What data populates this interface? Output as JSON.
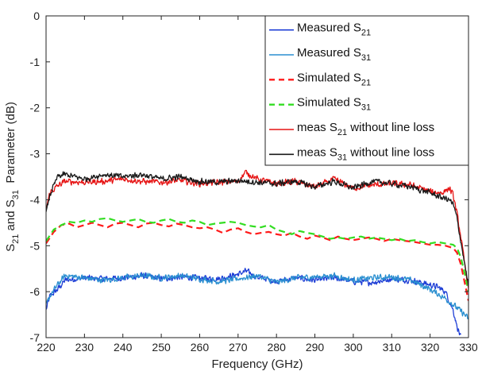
{
  "chart_data": {
    "type": "line",
    "xlabel": "Frequency (GHz)",
    "ylabel_parts": {
      "a": "S",
      "a_sub": "21",
      "b": " and S",
      "b_sub": "31",
      "c": "  Parameter (dB)"
    },
    "xlim": [
      220,
      330
    ],
    "ylim": [
      -7,
      0
    ],
    "xticks": [
      220,
      230,
      240,
      250,
      260,
      270,
      280,
      290,
      300,
      310,
      320,
      330
    ],
    "yticks": [
      0,
      -1,
      -2,
      -3,
      -4,
      -5,
      -6,
      -7
    ],
    "grid": false,
    "legend_position": "top-right",
    "series": [
      {
        "name": "Measured S21",
        "legend": {
          "pre": "Measured S",
          "sub": "21",
          "post": ""
        },
        "color": "#1f3fd6",
        "dash": "solid",
        "noisy": true,
        "x": [
          220,
          221,
          223,
          225,
          230,
          235,
          240,
          245,
          250,
          255,
          260,
          265,
          270,
          272,
          275,
          280,
          285,
          290,
          295,
          300,
          305,
          310,
          315,
          320,
          322,
          324,
          326,
          327,
          328
        ],
        "y": [
          -6.4,
          -6.1,
          -5.95,
          -5.75,
          -5.7,
          -5.72,
          -5.7,
          -5.65,
          -5.72,
          -5.68,
          -5.7,
          -5.72,
          -5.62,
          -5.55,
          -5.68,
          -5.78,
          -5.7,
          -5.75,
          -5.7,
          -5.78,
          -5.8,
          -5.72,
          -5.75,
          -5.85,
          -5.9,
          -6.0,
          -6.4,
          -6.75,
          -7.0
        ]
      },
      {
        "name": "Measured S31",
        "legend": {
          "pre": "Measured S",
          "sub": "31",
          "post": ""
        },
        "color": "#2a8fd0",
        "dash": "solid",
        "noisy": true,
        "x": [
          220,
          221,
          223,
          225,
          230,
          235,
          240,
          245,
          250,
          255,
          260,
          265,
          270,
          275,
          280,
          285,
          290,
          295,
          300,
          305,
          310,
          315,
          320,
          324,
          327,
          329,
          330
        ],
        "y": [
          -6.3,
          -6.1,
          -5.85,
          -5.65,
          -5.7,
          -5.75,
          -5.7,
          -5.65,
          -5.7,
          -5.65,
          -5.72,
          -5.78,
          -5.72,
          -5.65,
          -5.8,
          -5.7,
          -5.68,
          -5.65,
          -5.75,
          -5.7,
          -5.68,
          -5.75,
          -5.95,
          -6.15,
          -6.35,
          -6.5,
          -6.6
        ]
      },
      {
        "name": "Simulated S21",
        "legend": {
          "pre": "Simulated S",
          "sub": "21",
          "post": ""
        },
        "color": "#ff1a1a",
        "dash": "dashed",
        "noisy": false,
        "x": [
          220,
          222,
          224,
          226,
          228,
          230,
          232,
          234,
          236,
          238,
          240,
          242,
          244,
          246,
          248,
          250,
          252,
          254,
          256,
          258,
          260,
          262,
          264,
          266,
          268,
          270,
          272,
          274,
          276,
          278,
          280,
          282,
          284,
          286,
          288,
          290,
          292,
          294,
          296,
          298,
          300,
          302,
          304,
          306,
          308,
          310,
          312,
          314,
          316,
          318,
          320,
          322,
          324,
          326,
          327,
          328,
          329,
          330
        ],
        "y": [
          -4.95,
          -4.7,
          -4.55,
          -4.52,
          -4.6,
          -4.55,
          -4.5,
          -4.55,
          -4.6,
          -4.52,
          -4.5,
          -4.55,
          -4.6,
          -4.52,
          -4.5,
          -4.55,
          -4.58,
          -4.52,
          -4.55,
          -4.6,
          -4.62,
          -4.6,
          -4.65,
          -4.72,
          -4.65,
          -4.62,
          -4.7,
          -4.75,
          -4.72,
          -4.7,
          -4.75,
          -4.78,
          -4.72,
          -4.8,
          -4.85,
          -4.78,
          -4.82,
          -4.88,
          -4.8,
          -4.85,
          -4.88,
          -4.85,
          -4.82,
          -4.85,
          -4.9,
          -4.85,
          -4.88,
          -4.9,
          -4.92,
          -4.95,
          -4.98,
          -4.98,
          -5.0,
          -5.05,
          -5.15,
          -5.4,
          -5.8,
          -6.2
        ]
      },
      {
        "name": "Simulated S31",
        "legend": {
          "pre": "Simulated S",
          "sub": "31",
          "post": ""
        },
        "color": "#33dd22",
        "dash": "dashed",
        "noisy": false,
        "x": [
          220,
          222,
          224,
          226,
          228,
          230,
          232,
          234,
          236,
          238,
          240,
          242,
          244,
          246,
          248,
          250,
          252,
          254,
          256,
          258,
          260,
          262,
          264,
          266,
          268,
          270,
          272,
          274,
          276,
          278,
          280,
          282,
          284,
          286,
          288,
          290,
          292,
          294,
          296,
          298,
          300,
          302,
          304,
          306,
          308,
          310,
          312,
          314,
          316,
          318,
          320,
          322,
          324,
          326,
          327,
          328,
          329,
          330
        ],
        "y": [
          -4.9,
          -4.65,
          -4.55,
          -4.48,
          -4.5,
          -4.45,
          -4.48,
          -4.42,
          -4.4,
          -4.45,
          -4.48,
          -4.45,
          -4.42,
          -4.48,
          -4.5,
          -4.45,
          -4.42,
          -4.48,
          -4.5,
          -4.45,
          -4.48,
          -4.55,
          -4.52,
          -4.5,
          -4.48,
          -4.5,
          -4.55,
          -4.58,
          -4.6,
          -4.55,
          -4.65,
          -4.7,
          -4.75,
          -4.68,
          -4.72,
          -4.75,
          -4.8,
          -4.85,
          -4.82,
          -4.85,
          -4.82,
          -4.8,
          -4.85,
          -4.82,
          -4.85,
          -4.88,
          -4.85,
          -4.9,
          -4.88,
          -4.92,
          -4.95,
          -4.92,
          -4.95,
          -4.98,
          -5.05,
          -5.25,
          -5.6,
          -6.0
        ]
      },
      {
        "name": "meas S21 without line loss",
        "legend": {
          "pre": "meas S",
          "sub": "21",
          "post": " without line loss"
        },
        "color": "#e61414",
        "dash": "solid",
        "noisy": true,
        "x": [
          220,
          221,
          223,
          225,
          230,
          235,
          240,
          245,
          250,
          255,
          260,
          265,
          270,
          272,
          275,
          280,
          285,
          290,
          295,
          300,
          305,
          310,
          315,
          320,
          323,
          325,
          326,
          327,
          328,
          329,
          330
        ],
        "y": [
          -4.2,
          -3.85,
          -3.7,
          -3.6,
          -3.62,
          -3.6,
          -3.55,
          -3.6,
          -3.62,
          -3.58,
          -3.65,
          -3.62,
          -3.6,
          -3.4,
          -3.55,
          -3.65,
          -3.6,
          -3.72,
          -3.55,
          -3.75,
          -3.68,
          -3.65,
          -3.68,
          -3.82,
          -3.85,
          -3.75,
          -3.9,
          -4.3,
          -4.8,
          -5.4,
          -5.9
        ]
      },
      {
        "name": "meas S31 without line loss",
        "legend": {
          "pre": "meas S",
          "sub": "31",
          "post": " without line loss"
        },
        "color": "#1a1a1a",
        "dash": "solid",
        "noisy": true,
        "x": [
          220,
          221,
          223,
          225,
          230,
          235,
          240,
          245,
          250,
          255,
          260,
          265,
          270,
          275,
          280,
          285,
          290,
          295,
          300,
          305,
          310,
          315,
          320,
          323,
          325,
          326,
          327,
          328,
          329,
          330
        ],
        "y": [
          -4.3,
          -3.9,
          -3.5,
          -3.45,
          -3.55,
          -3.45,
          -3.5,
          -3.45,
          -3.55,
          -3.5,
          -3.6,
          -3.62,
          -3.58,
          -3.62,
          -3.65,
          -3.6,
          -3.72,
          -3.6,
          -3.75,
          -3.6,
          -3.65,
          -3.72,
          -3.85,
          -3.95,
          -4.0,
          -4.1,
          -4.4,
          -4.9,
          -5.4,
          -5.9
        ]
      }
    ]
  }
}
